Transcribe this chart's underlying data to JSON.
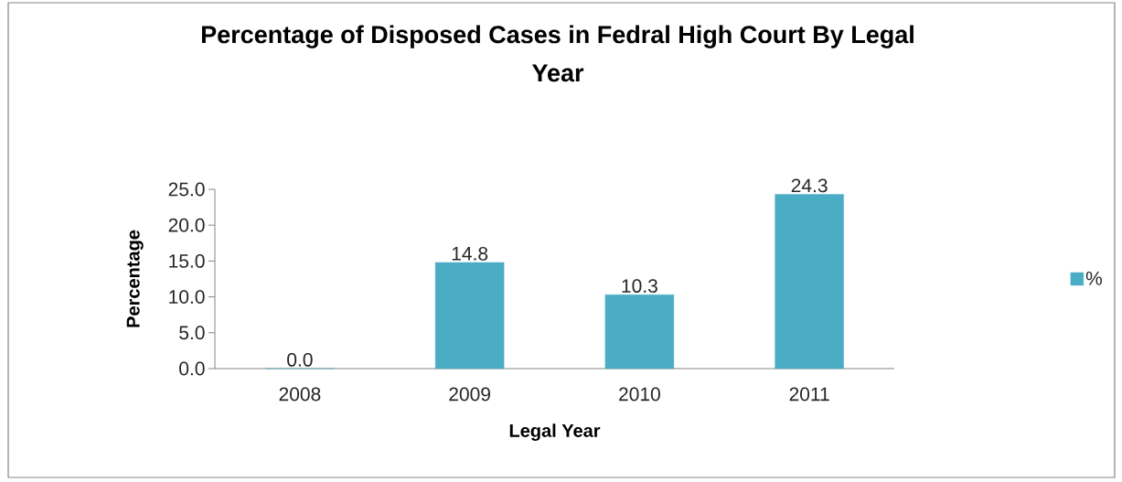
{
  "chart_data": {
    "type": "bar",
    "title": "Percentage of Disposed Cases in Fedral High Court By Legal Year",
    "xlabel": "Legal Year",
    "ylabel": "Percentage",
    "categories": [
      "2008",
      "2009",
      "2010",
      "2011"
    ],
    "series": [
      {
        "name": "%",
        "color": "#4bacc6",
        "values": [
          0.0,
          14.8,
          10.3,
          24.3
        ],
        "value_labels": [
          "0.0",
          "14.8",
          "10.3",
          "24.3"
        ]
      }
    ],
    "ylim": [
      0,
      25
    ],
    "yticks": [
      {
        "value": 0,
        "label": "0.0"
      },
      {
        "value": 5,
        "label": "5.0"
      },
      {
        "value": 10,
        "label": "10.0"
      },
      {
        "value": 15,
        "label": "15.0"
      },
      {
        "value": 20,
        "label": "20.0"
      },
      {
        "value": 25,
        "label": "25.0"
      }
    ],
    "legend": "right"
  }
}
